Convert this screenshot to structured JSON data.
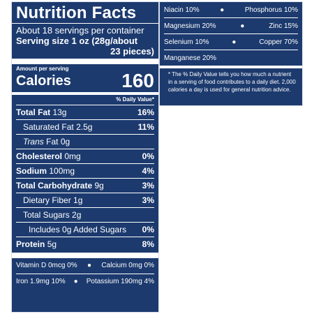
{
  "label": {
    "title": "Nutrition Facts",
    "servings_per_container": "About 18 servings per container",
    "serving_size_line1": "Serving size 1 oz (28g/about",
    "serving_size_line2": "23 pieces)",
    "amount_per_serving": "Amount per serving",
    "calories_label": "Calories",
    "calories_value": "160",
    "dv_header": "% Daily Value*",
    "nutrients": [
      {
        "name": "Total Fat",
        "amount": "13g",
        "dv": "16%"
      },
      {
        "name": "Saturated Fat",
        "amount": "2.5g",
        "dv": "11%"
      },
      {
        "name": "Trans",
        "suffix": "Fat 0g",
        "dv": ""
      },
      {
        "name": "Cholesterol",
        "amount": "0mg",
        "dv": "0%"
      },
      {
        "name": "Sodium",
        "amount": "100mg",
        "dv": "4%"
      },
      {
        "name": "Total Carbohydrate",
        "amount": "9g",
        "dv": "3%"
      },
      {
        "name": "Dietary Fiber",
        "amount": "1g",
        "dv": "3%"
      },
      {
        "name": "Total Sugars",
        "amount": "2g",
        "dv": ""
      },
      {
        "name": "Includes 0g Added Sugars",
        "amount": "",
        "dv": "0%"
      },
      {
        "name": "Protein",
        "amount": "5g",
        "dv": "8%"
      }
    ],
    "vitamins": [
      {
        "left": "Vitamin D 0mcg 0%",
        "right": "Calcium 0mg 0%"
      },
      {
        "left": "Iron 1.9mg 10%",
        "right": "Potassium 190mg 4%"
      }
    ]
  },
  "minerals": {
    "rows": [
      {
        "left": "Niacin 10%",
        "right": "Phosphorus 10%"
      },
      {
        "left": "Magnesium 20%",
        "right": "Zinc 15%"
      },
      {
        "left": "Selenium 10%",
        "right": "Copper 70%"
      }
    ],
    "solo": "Manganese 20%",
    "footnote": "* The % Daily Value tells you how much a nutrient in a serving of food contributes to a daily diet. 2,000 calories a day is used for general nutrition advice."
  },
  "colors": {
    "panel": "#1c3a6e",
    "text": "#ffffff"
  }
}
